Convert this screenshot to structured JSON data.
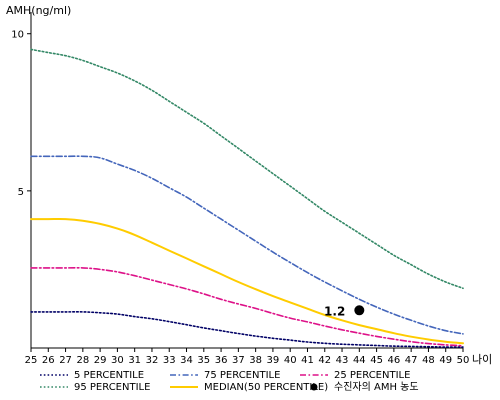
{
  "chart_data": {
    "type": "line",
    "ylabel": "AMH(ng/ml)",
    "xlabel": "나이",
    "xlim": [
      25,
      50
    ],
    "ylim": [
      0,
      10.5
    ],
    "x_ticks": [
      25,
      26,
      27,
      28,
      29,
      30,
      31,
      32,
      33,
      34,
      35,
      36,
      37,
      38,
      39,
      40,
      41,
      42,
      43,
      44,
      45,
      46,
      47,
      48,
      49,
      50
    ],
    "y_ticks": [
      5,
      10
    ],
    "x_values": [
      25,
      26,
      27,
      28,
      29,
      30,
      31,
      32,
      33,
      34,
      35,
      36,
      37,
      38,
      39,
      40,
      41,
      42,
      43,
      44,
      45,
      46,
      47,
      48,
      49,
      50
    ],
    "series": [
      {
        "name": "5 PERCENTILE",
        "color": "#000066",
        "dash": "dotted",
        "values": [
          1.15,
          1.15,
          1.15,
          1.15,
          1.12,
          1.08,
          1.0,
          0.93,
          0.84,
          0.74,
          0.64,
          0.55,
          0.46,
          0.38,
          0.31,
          0.25,
          0.19,
          0.15,
          0.12,
          0.1,
          0.08,
          0.06,
          0.05,
          0.04,
          0.03,
          0.03
        ]
      },
      {
        "name": "75 PERCENTILE",
        "color": "#4466bb",
        "dash": "dashdot",
        "values": [
          6.1,
          6.1,
          6.1,
          6.1,
          6.05,
          5.85,
          5.65,
          5.4,
          5.1,
          4.8,
          4.45,
          4.1,
          3.75,
          3.4,
          3.05,
          2.72,
          2.4,
          2.1,
          1.82,
          1.55,
          1.3,
          1.08,
          0.88,
          0.7,
          0.55,
          0.45
        ]
      },
      {
        "name": "25 PERCENTILE",
        "color": "#dd1188",
        "dash": "dashdot",
        "values": [
          2.55,
          2.55,
          2.55,
          2.55,
          2.5,
          2.42,
          2.3,
          2.16,
          2.02,
          1.88,
          1.72,
          1.55,
          1.4,
          1.26,
          1.1,
          0.95,
          0.83,
          0.7,
          0.58,
          0.47,
          0.37,
          0.28,
          0.2,
          0.14,
          0.1,
          0.07
        ]
      },
      {
        "name": "95 PERCENTILE",
        "color": "#338866",
        "dash": "dotted",
        "values": [
          9.5,
          9.4,
          9.3,
          9.15,
          8.95,
          8.75,
          8.5,
          8.2,
          7.85,
          7.5,
          7.15,
          6.75,
          6.35,
          5.95,
          5.55,
          5.15,
          4.75,
          4.35,
          4.0,
          3.65,
          3.3,
          2.95,
          2.65,
          2.35,
          2.1,
          1.9
        ]
      },
      {
        "name": "MEDIAN(50 PERCENTILE)",
        "color": "#ffcc00",
        "dash": "solid",
        "values": [
          4.1,
          4.1,
          4.1,
          4.05,
          3.95,
          3.8,
          3.6,
          3.35,
          3.1,
          2.85,
          2.6,
          2.35,
          2.1,
          1.87,
          1.65,
          1.45,
          1.25,
          1.05,
          0.88,
          0.73,
          0.6,
          0.47,
          0.36,
          0.27,
          0.2,
          0.15
        ]
      }
    ],
    "patient_point": {
      "name": "수진자의 AMH 농도",
      "x": 44,
      "y": 1.2,
      "label": "1.2",
      "color": "#000000"
    },
    "legend_placement": "bottom",
    "grid": false
  }
}
